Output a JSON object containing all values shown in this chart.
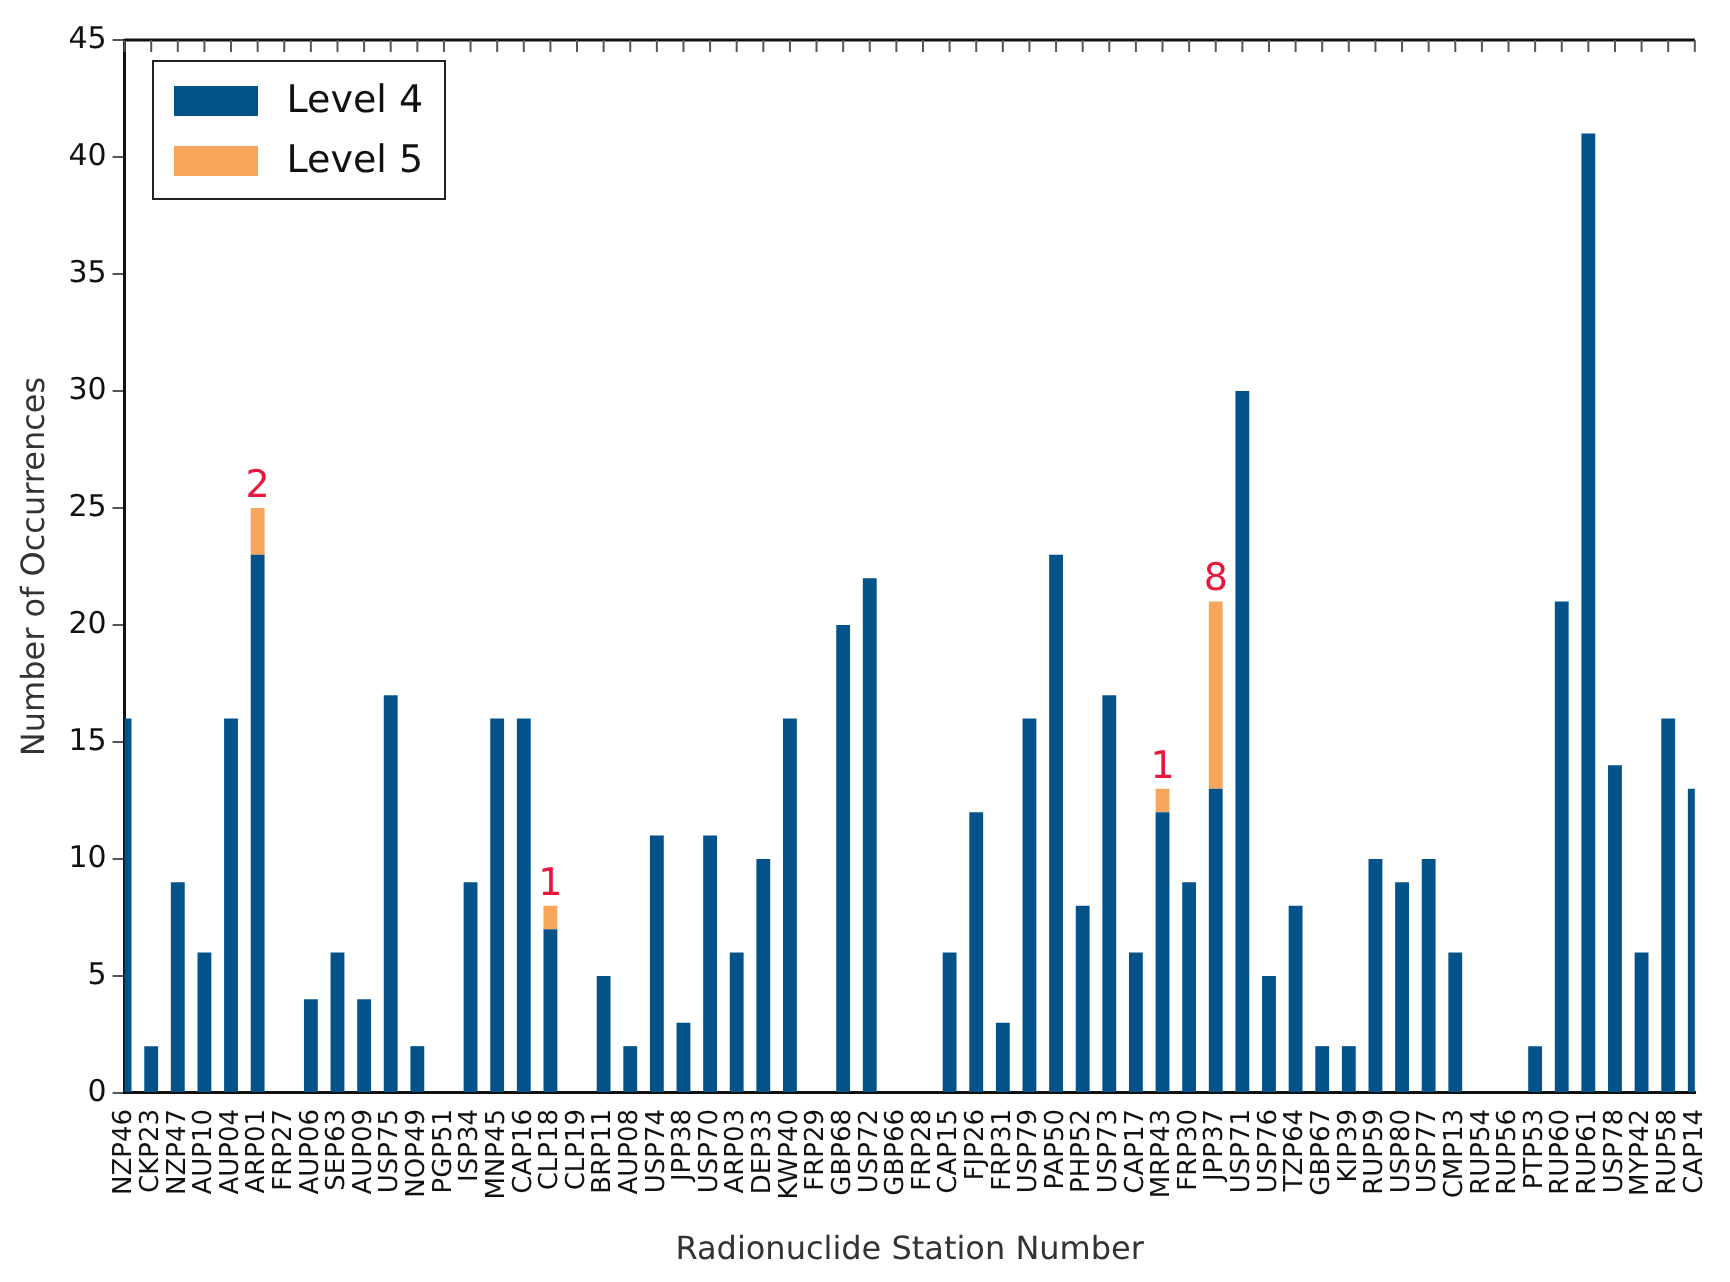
{
  "chart_data": {
    "type": "bar",
    "xlabel": "Radionuclide Station Number",
    "ylabel": "Number of Occurrences",
    "categories": [
      "NZP46",
      "CKP23",
      "NZP47",
      "AUP10",
      "AUP04",
      "ARP01",
      "FRP27",
      "AUP06",
      "SEP63",
      "AUP09",
      "USP75",
      "NOP49",
      "PGP51",
      "ISP34",
      "MNP45",
      "CAP16",
      "CLP18",
      "CLP19",
      "BRP11",
      "AUP08",
      "USP74",
      "JPP38",
      "USP70",
      "ARP03",
      "DEP33",
      "KWP40",
      "FRP29",
      "GBP68",
      "USP72",
      "GBP66",
      "FRP28",
      "CAP15",
      "FJP26",
      "FRP31",
      "USP79",
      "PAP50",
      "PHP52",
      "USP73",
      "CAP17",
      "MRP43",
      "FRP30",
      "JPP37",
      "USP71",
      "USP76",
      "TZP64",
      "GBP67",
      "KIP39",
      "RUP59",
      "USP80",
      "USP77",
      "CMP13",
      "RUP54",
      "RUP56",
      "PTP53",
      "RUP60",
      "RUP61",
      "USP78",
      "MYP42",
      "RUP58",
      "CAP14"
    ],
    "series": [
      {
        "name": "Level 4",
        "color": "#03538a",
        "values": [
          16,
          2,
          9,
          6,
          16,
          23,
          0,
          4,
          6,
          4,
          17,
          2,
          0,
          9,
          16,
          16,
          7,
          0,
          5,
          2,
          11,
          3,
          11,
          6,
          10,
          16,
          0,
          20,
          22,
          0,
          0,
          6,
          12,
          3,
          16,
          23,
          8,
          17,
          6,
          12,
          9,
          13,
          30,
          5,
          8,
          2,
          2,
          10,
          9,
          10,
          6,
          0,
          0,
          2,
          21,
          41,
          14,
          6,
          16,
          13
        ]
      },
      {
        "name": "Level 5",
        "color": "#f7a65c",
        "values": [
          null,
          null,
          null,
          null,
          null,
          2,
          null,
          null,
          null,
          null,
          null,
          null,
          null,
          null,
          null,
          null,
          1,
          null,
          null,
          null,
          null,
          null,
          null,
          null,
          null,
          null,
          null,
          null,
          null,
          null,
          null,
          null,
          null,
          null,
          null,
          null,
          null,
          null,
          null,
          1,
          null,
          8,
          null,
          null,
          null,
          null,
          null,
          null,
          null,
          null,
          null,
          null,
          null,
          null,
          null,
          null,
          null,
          null,
          null,
          null
        ],
        "value_labels": [
          null,
          null,
          null,
          null,
          null,
          "2",
          null,
          null,
          null,
          null,
          null,
          null,
          null,
          null,
          null,
          null,
          "1",
          null,
          null,
          null,
          null,
          null,
          null,
          null,
          null,
          null,
          null,
          null,
          null,
          null,
          null,
          null,
          null,
          null,
          null,
          null,
          null,
          null,
          null,
          "1",
          null,
          "8",
          null,
          null,
          null,
          null,
          null,
          null,
          null,
          null,
          null,
          null,
          null,
          null,
          null,
          null,
          null,
          null,
          null,
          null
        ]
      }
    ],
    "stacked": true,
    "ylim": [
      0,
      45
    ],
    "yticks": [
      0,
      5,
      10,
      15,
      20,
      25,
      30,
      35,
      40,
      45
    ],
    "grid": false,
    "legend": "top left"
  }
}
